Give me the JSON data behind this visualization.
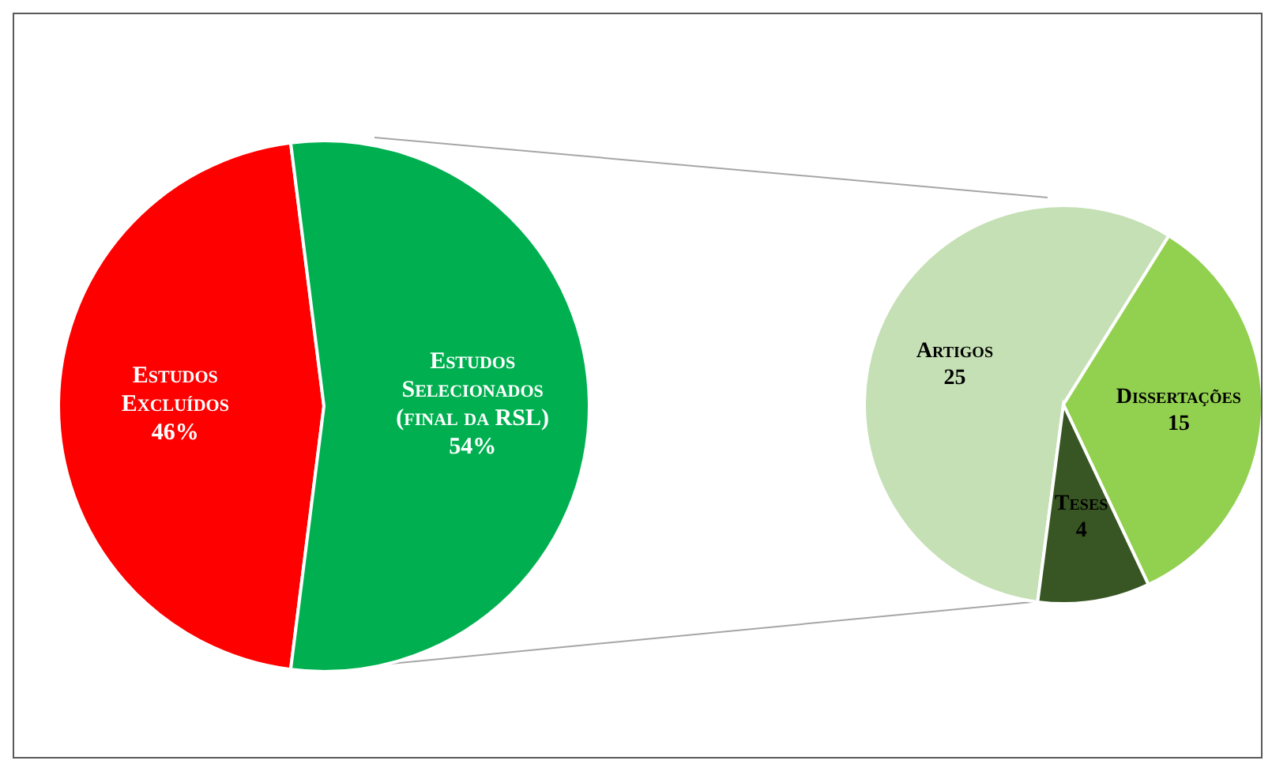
{
  "chart_data": [
    {
      "type": "pie",
      "categories": [
        "Estudos Excluídos",
        "Estudos Selecionados (final da RSL)"
      ],
      "values": [
        46,
        54
      ],
      "value_labels": [
        "46%",
        "54%"
      ],
      "colors": [
        "#ff0000",
        "#00b050"
      ],
      "legend": false
    },
    {
      "type": "pie",
      "categories": [
        "Artigos",
        "Dissertações",
        "Teses"
      ],
      "values": [
        25,
        15,
        4
      ],
      "data_labels": true,
      "colors": [
        "#c5e0b4",
        "#92d050",
        "#375623"
      ],
      "legend": false
    }
  ]
}
